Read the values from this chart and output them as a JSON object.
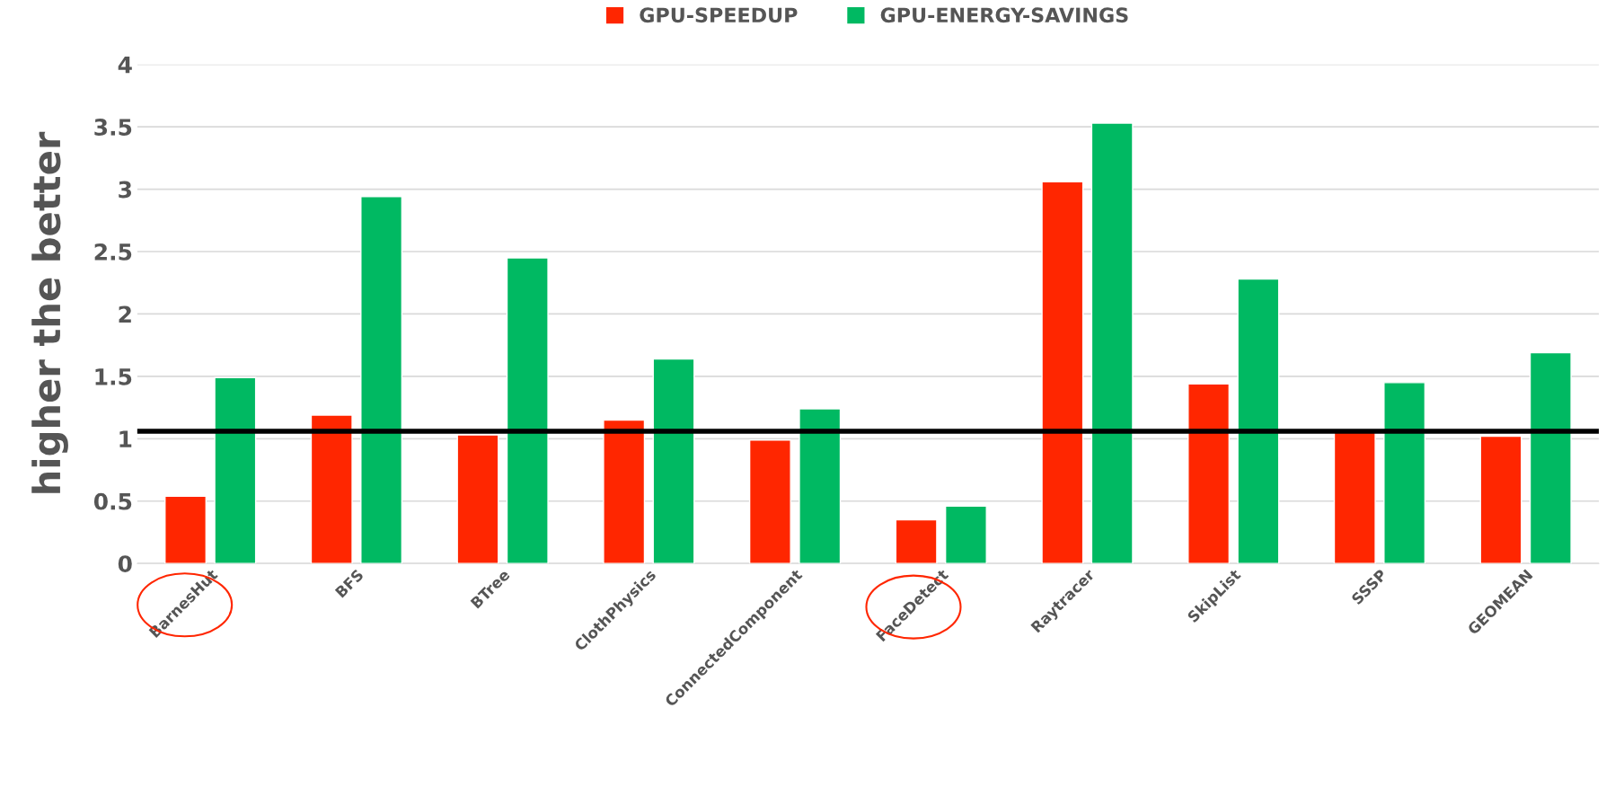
{
  "chart_data": {
    "type": "bar",
    "ylabel": "higher the better",
    "categories": [
      "BarnesHut",
      "BFS",
      "BTree",
      "ClothPhysics",
      "ConnectedComponent",
      "FaceDetect",
      "Raytracer",
      "SkipList",
      "SSSP",
      "GEOMEAN"
    ],
    "series": [
      {
        "name": "GPU-SPEEDUP",
        "color": "#ff2600",
        "values": [
          0.54,
          1.19,
          1.03,
          1.15,
          0.99,
          0.35,
          3.06,
          1.44,
          1.05,
          1.02
        ]
      },
      {
        "name": "GPU-ENERGY-SAVINGS",
        "color": "#00b962",
        "values": [
          1.49,
          2.94,
          2.45,
          1.64,
          1.24,
          0.46,
          3.53,
          2.28,
          1.45,
          1.69
        ]
      }
    ],
    "ylim": [
      0,
      4
    ],
    "yticks": [
      0,
      0.5,
      1,
      1.5,
      2,
      2.5,
      3,
      3.5,
      4
    ],
    "grid": "y",
    "legend": "top",
    "ref_lines": [
      {
        "axis": "y",
        "value": 1.06,
        "color": "#000000"
      }
    ]
  }
}
